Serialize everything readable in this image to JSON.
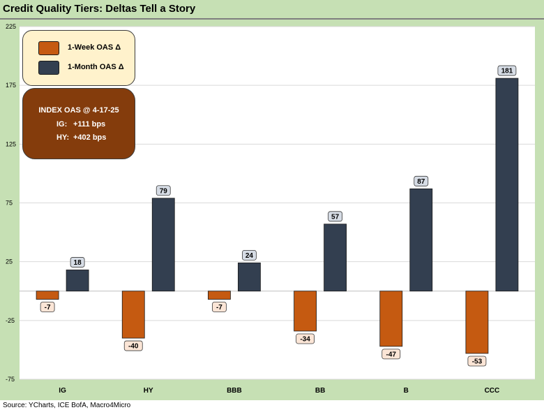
{
  "header": {
    "title": "Credit Quality Tiers: Deltas Tell a Story"
  },
  "source": "Source: YCharts, ICE BofA, Macro4Micro",
  "legend": [
    {
      "label": "1-Week OAS Δ",
      "color": "#c55a11"
    },
    {
      "label": "1-Month OAS Δ",
      "color": "#333f50"
    }
  ],
  "oas_box": {
    "title": "INDEX OAS @ 4-17-25",
    "rows": [
      {
        "key": "IG:",
        "value": "+111 bps"
      },
      {
        "key": "HY:",
        "value": "+402 bps"
      }
    ]
  },
  "chart_data": {
    "type": "bar",
    "categories": [
      "IG",
      "HY",
      "BBB",
      "BB",
      "B",
      "CCC"
    ],
    "series": [
      {
        "name": "1-Week OAS Δ",
        "color": "#c55a11",
        "values": [
          -7,
          -40,
          -7,
          -34,
          -47,
          -53
        ]
      },
      {
        "name": "1-Month OAS Δ",
        "color": "#333f50",
        "values": [
          18,
          79,
          24,
          57,
          87,
          181
        ]
      }
    ],
    "yticks": [
      225,
      175,
      125,
      75,
      25,
      -25,
      -75
    ],
    "ylim": [
      -75,
      225
    ],
    "grid": true,
    "legend_position": "top-left"
  }
}
